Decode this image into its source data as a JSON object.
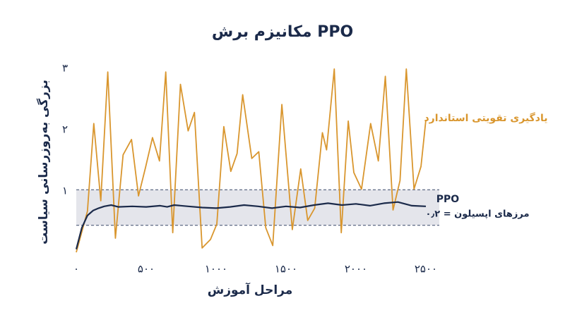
{
  "chart_data": {
    "type": "line",
    "title": "مکانیزم برش PPO",
    "xlabel": "مراحل آموزش",
    "ylabel": "بزرگی به‌روزرسانی سیاست",
    "xlim": [
      0,
      2500
    ],
    "ylim": [
      0,
      3
    ],
    "xticks": [
      {
        "value": 0,
        "label": "۰"
      },
      {
        "value": 500,
        "label": "۵۰۰"
      },
      {
        "value": 1000,
        "label": "۱۰۰۰"
      },
      {
        "value": 1500,
        "label": "۱۵۰۰"
      },
      {
        "value": 2000,
        "label": "۲۰۰۰"
      },
      {
        "value": 2500,
        "label": "۲۵۰۰"
      }
    ],
    "yticks": [
      {
        "value": 1,
        "label": "۱"
      },
      {
        "value": 2,
        "label": "۲"
      },
      {
        "value": 3,
        "label": "۳"
      }
    ],
    "band": [
      0.44,
      1.02
    ],
    "band_label": "مرزهای اپسیلون = ۰٫۲",
    "series": [
      {
        "name": "یادگیری تقویتی استاندارد",
        "color": "#d9962e",
        "x": [
          0,
          80,
          125,
          175,
          225,
          280,
          335,
          395,
          445,
          495,
          545,
          595,
          640,
          690,
          745,
          800,
          845,
          900,
          960,
          1005,
          1055,
          1105,
          1150,
          1190,
          1255,
          1305,
          1355,
          1405,
          1470,
          1545,
          1605,
          1655,
          1705,
          1760,
          1790,
          1845,
          1895,
          1945,
          1985,
          2040,
          2105,
          2160,
          2210,
          2265,
          2315,
          2360,
          2415,
          2465,
          2500
        ],
        "values": [
          0,
          0.67,
          2.1,
          0.84,
          2.94,
          0.23,
          1.59,
          1.84,
          0.92,
          1.38,
          1.87,
          1.49,
          2.94,
          0.32,
          2.74,
          1.98,
          2.28,
          0.07,
          0.21,
          0.46,
          2.05,
          1.32,
          1.61,
          2.57,
          1.53,
          1.64,
          0.4,
          0.11,
          2.41,
          0.37,
          1.36,
          0.52,
          0.72,
          1.95,
          1.67,
          2.99,
          0.32,
          2.14,
          1.3,
          1.03,
          2.1,
          1.49,
          2.87,
          0.69,
          1.17,
          2.99,
          1.03,
          1.4,
          2.16
        ]
      },
      {
        "name": "PPO",
        "color": "#1b2a4a",
        "x": [
          0,
          40,
          80,
          120,
          160,
          200,
          250,
          300,
          400,
          500,
          600,
          650,
          700,
          800,
          900,
          1000,
          1100,
          1200,
          1300,
          1400,
          1500,
          1600,
          1700,
          1800,
          1900,
          2000,
          2100,
          2200,
          2300,
          2400,
          2500
        ],
        "values": [
          0.05,
          0.4,
          0.6,
          0.68,
          0.72,
          0.75,
          0.77,
          0.74,
          0.75,
          0.74,
          0.76,
          0.74,
          0.77,
          0.75,
          0.73,
          0.72,
          0.74,
          0.77,
          0.75,
          0.72,
          0.75,
          0.73,
          0.77,
          0.8,
          0.77,
          0.79,
          0.76,
          0.8,
          0.82,
          0.76,
          0.75
        ]
      }
    ]
  }
}
